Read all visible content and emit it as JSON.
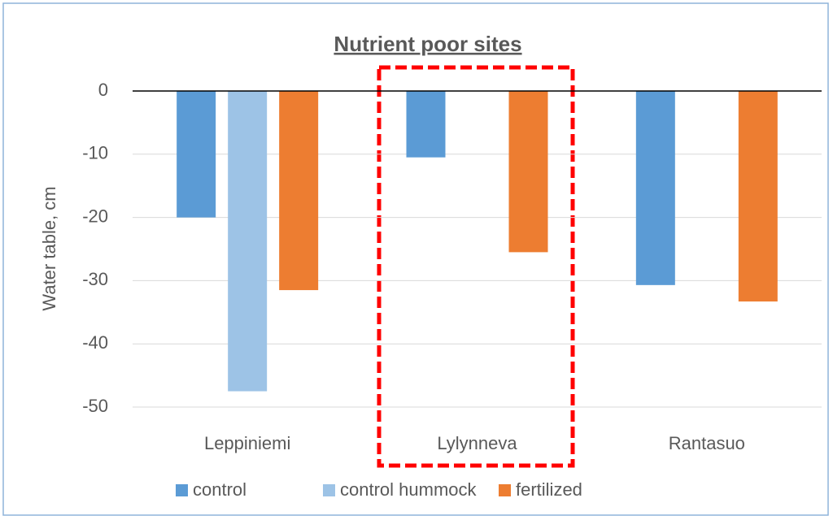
{
  "chart_data": {
    "type": "bar",
    "title": "Nutrient poor sites",
    "y_label": "Water table, cm",
    "categories": [
      "Leppiniemi",
      "Lylynneva",
      "Rantasuo"
    ],
    "series": [
      {
        "name": "control",
        "color": "#5b9bd5",
        "values": [
          -20,
          -10.5,
          -30.7
        ]
      },
      {
        "name": "control hummock",
        "color": "#9dc3e6",
        "values": [
          -47.5,
          null,
          null
        ]
      },
      {
        "name": "fertilized",
        "color": "#ed7d31",
        "values": [
          -31.5,
          -25.5,
          -33.3
        ]
      }
    ],
    "ylim": [
      -50,
      0
    ],
    "yticks": [
      0,
      -10,
      -20,
      -30,
      -40,
      -50
    ],
    "grid": true,
    "legend": "bottom"
  }
}
